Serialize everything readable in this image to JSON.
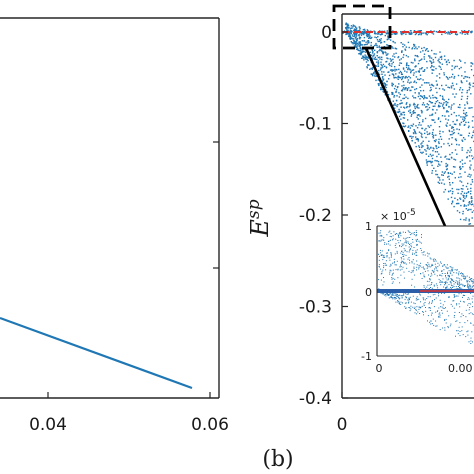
{
  "colors": {
    "series": "#1f77b4",
    "reference": "#e0302c",
    "axis": "#262626",
    "callout": "#000000"
  },
  "chart_data": [
    {
      "panel": "left (cropped)",
      "type": "line",
      "xlabel": "",
      "ylabel": "",
      "xticks": [
        "0.04",
        "0.06"
      ],
      "xlim": [
        0.0,
        0.06
      ],
      "series": [
        {
          "x": [
            0.0,
            0.057
          ],
          "y": [
            0.0,
            -1.0
          ]
        }
      ],
      "grid": false
    },
    {
      "panel": "(b)",
      "panel_label": "(b)",
      "type": "scatter",
      "ylabel": "E^{sp}",
      "ylabel_main": "E",
      "ylabel_sup": "sp",
      "yticks": [
        "0",
        "-0.1",
        "-0.2",
        "-0.3",
        "-0.4"
      ],
      "ytick_values": [
        0,
        -0.1,
        -0.2,
        -0.3,
        -0.4
      ],
      "xticks": [
        "0"
      ],
      "ylim": [
        -0.4,
        0.01
      ],
      "reference_line": {
        "y": 0,
        "style": "dashed"
      },
      "description": "dense blue scatter fanning downward from near 0",
      "inset": {
        "yticks": [
          "1",
          "0",
          "-1"
        ],
        "ytick_values": [
          1,
          0,
          -1
        ],
        "y_exponent_base": "× 10",
        "y_exponent": "-5",
        "xticks": [
          "0",
          "0.00"
        ],
        "ylim": [
          -1,
          1
        ]
      },
      "grid": false
    }
  ]
}
